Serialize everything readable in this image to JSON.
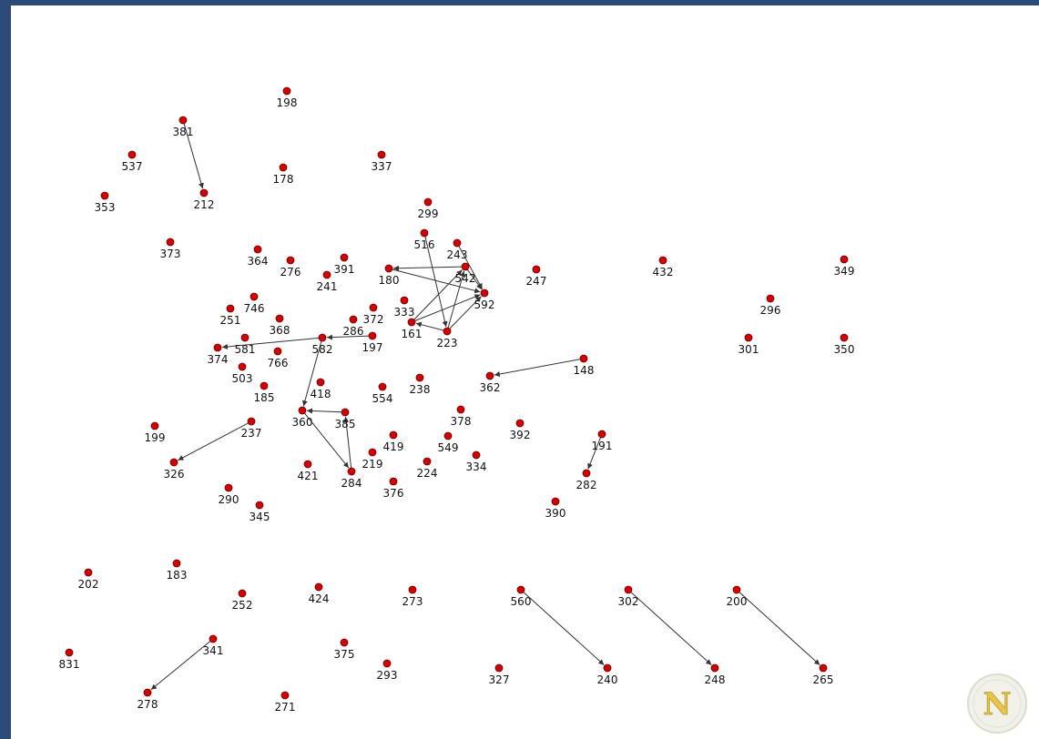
{
  "graph": {
    "nodes": [
      {
        "id": "198",
        "label": "198"
      },
      {
        "id": "381",
        "label": "381"
      },
      {
        "id": "537",
        "label": "537"
      },
      {
        "id": "178",
        "label": "178"
      },
      {
        "id": "337",
        "label": "337"
      },
      {
        "id": "353",
        "label": "353"
      },
      {
        "id": "212",
        "label": "212"
      },
      {
        "id": "299",
        "label": "299"
      },
      {
        "id": "373",
        "label": "373"
      },
      {
        "id": "516",
        "label": "516"
      },
      {
        "id": "243",
        "label": "243"
      },
      {
        "id": "364",
        "label": "364"
      },
      {
        "id": "276",
        "label": "276"
      },
      {
        "id": "391",
        "label": "391"
      },
      {
        "id": "180",
        "label": "180"
      },
      {
        "id": "542",
        "label": "542"
      },
      {
        "id": "247",
        "label": "247"
      },
      {
        "id": "432",
        "label": "432"
      },
      {
        "id": "349",
        "label": "349"
      },
      {
        "id": "241",
        "label": "241"
      },
      {
        "id": "592",
        "label": "592"
      },
      {
        "id": "296",
        "label": "296"
      },
      {
        "id": "746",
        "label": "746"
      },
      {
        "id": "333",
        "label": "333"
      },
      {
        "id": "251",
        "label": "251"
      },
      {
        "id": "372",
        "label": "372"
      },
      {
        "id": "368",
        "label": "368"
      },
      {
        "id": "286",
        "label": "286"
      },
      {
        "id": "161",
        "label": "161"
      },
      {
        "id": "223",
        "label": "223"
      },
      {
        "id": "581",
        "label": "581"
      },
      {
        "id": "197",
        "label": "197"
      },
      {
        "id": "582",
        "label": "582"
      },
      {
        "id": "374",
        "label": "374"
      },
      {
        "id": "766",
        "label": "766"
      },
      {
        "id": "301",
        "label": "301"
      },
      {
        "id": "350",
        "label": "350"
      },
      {
        "id": "503",
        "label": "503"
      },
      {
        "id": "148",
        "label": "148"
      },
      {
        "id": "362",
        "label": "362"
      },
      {
        "id": "185",
        "label": "185"
      },
      {
        "id": "418",
        "label": "418"
      },
      {
        "id": "554",
        "label": "554"
      },
      {
        "id": "238",
        "label": "238"
      },
      {
        "id": "360",
        "label": "360"
      },
      {
        "id": "385",
        "label": "385"
      },
      {
        "id": "378",
        "label": "378"
      },
      {
        "id": "199",
        "label": "199"
      },
      {
        "id": "237",
        "label": "237"
      },
      {
        "id": "392",
        "label": "392"
      },
      {
        "id": "191",
        "label": "191"
      },
      {
        "id": "419",
        "label": "419"
      },
      {
        "id": "549",
        "label": "549"
      },
      {
        "id": "326",
        "label": "326"
      },
      {
        "id": "219",
        "label": "219"
      },
      {
        "id": "334",
        "label": "334"
      },
      {
        "id": "421",
        "label": "421"
      },
      {
        "id": "224",
        "label": "224"
      },
      {
        "id": "284",
        "label": "284"
      },
      {
        "id": "282",
        "label": "282"
      },
      {
        "id": "376",
        "label": "376"
      },
      {
        "id": "290",
        "label": "290"
      },
      {
        "id": "345",
        "label": "345"
      },
      {
        "id": "390",
        "label": "390"
      },
      {
        "id": "202",
        "label": "202"
      },
      {
        "id": "183",
        "label": "183"
      },
      {
        "id": "424",
        "label": "424"
      },
      {
        "id": "273",
        "label": "273"
      },
      {
        "id": "560",
        "label": "560"
      },
      {
        "id": "302",
        "label": "302"
      },
      {
        "id": "200",
        "label": "200"
      },
      {
        "id": "252",
        "label": "252"
      },
      {
        "id": "341",
        "label": "341"
      },
      {
        "id": "375",
        "label": "375"
      },
      {
        "id": "831",
        "label": "831"
      },
      {
        "id": "293",
        "label": "293"
      },
      {
        "id": "327",
        "label": "327"
      },
      {
        "id": "240",
        "label": "240"
      },
      {
        "id": "248",
        "label": "248"
      },
      {
        "id": "265",
        "label": "265"
      },
      {
        "id": "278",
        "label": "278"
      },
      {
        "id": "271",
        "label": "271"
      }
    ],
    "edges": [
      {
        "from": "381",
        "to": "212"
      },
      {
        "from": "582",
        "to": "374"
      },
      {
        "from": "197",
        "to": "582"
      },
      {
        "from": "582",
        "to": "360"
      },
      {
        "from": "385",
        "to": "360"
      },
      {
        "from": "360",
        "to": "284"
      },
      {
        "from": "284",
        "to": "385"
      },
      {
        "from": "237",
        "to": "326"
      },
      {
        "from": "148",
        "to": "362"
      },
      {
        "from": "191",
        "to": "282"
      },
      {
        "from": "341",
        "to": "278"
      },
      {
        "from": "560",
        "to": "240"
      },
      {
        "from": "302",
        "to": "248"
      },
      {
        "from": "200",
        "to": "265"
      },
      {
        "from": "542",
        "to": "180"
      },
      {
        "from": "180",
        "to": "592"
      },
      {
        "from": "516",
        "to": "223"
      },
      {
        "from": "542",
        "to": "592"
      },
      {
        "from": "243",
        "to": "592"
      },
      {
        "from": "223",
        "to": "542"
      },
      {
        "from": "223",
        "to": "592"
      },
      {
        "from": "223",
        "to": "161"
      },
      {
        "from": "161",
        "to": "542"
      },
      {
        "from": "161",
        "to": "592"
      }
    ]
  },
  "logo": {
    "letter": "N"
  }
}
